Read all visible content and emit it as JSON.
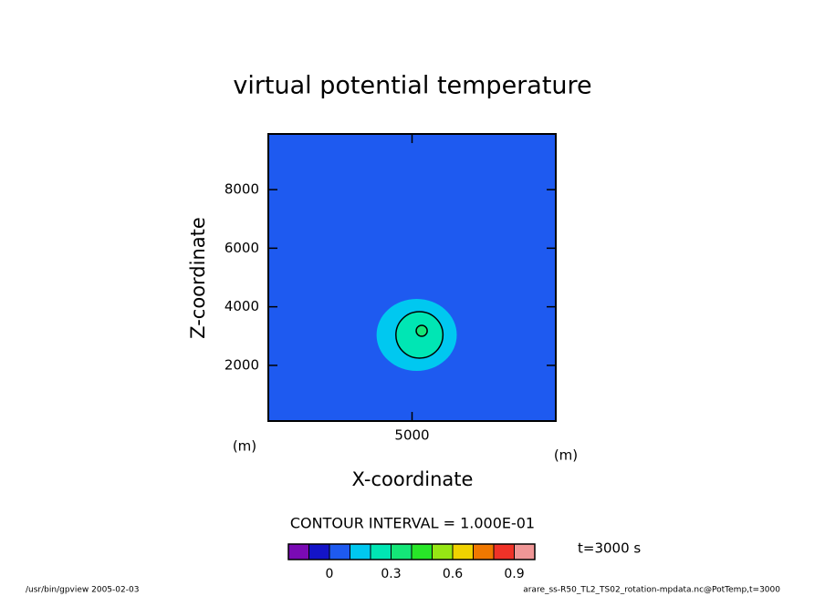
{
  "chart_data": {
    "type": "contour",
    "title": "virtual potential temperature",
    "xlabel": "X-coordinate",
    "ylabel": "Z-coordinate",
    "x_unit": "(m)",
    "y_unit": "(m)",
    "xlim": [
      50,
      9950
    ],
    "ylim": [
      100,
      9900
    ],
    "xticks": [
      5000
    ],
    "yticks": [
      2000,
      4000,
      6000,
      8000
    ],
    "contour_interval_label": "CONTOUR INTERVAL = 1.000E-01",
    "time_label": "t=3000 s",
    "colorbar": {
      "levels": [
        -0.2,
        -0.1,
        0,
        0.1,
        0.2,
        0.3,
        0.4,
        0.5,
        0.6,
        0.7,
        0.8,
        0.9,
        1.0
      ],
      "colors": [
        "#7a0ab4",
        "#1414c8",
        "#1e5af0",
        "#00c8f0",
        "#00e6b4",
        "#14e678",
        "#28e628",
        "#96e614",
        "#f0d200",
        "#f07800",
        "#f03228",
        "#f09696"
      ],
      "ticks": [
        0,
        0.3,
        0.6,
        0.9
      ]
    },
    "contours": [
      {
        "level": 0.1,
        "x": 5159,
        "y": 3040,
        "rx": 1381,
        "ry": 1229,
        "line": false
      },
      {
        "level": 0.2,
        "x": 5254,
        "y": 3040,
        "rx": 810,
        "ry": 793,
        "line": true
      },
      {
        "level": 0.3,
        "x": 5333,
        "y": 3180,
        "rx": 190,
        "ry": 187,
        "line": true
      }
    ],
    "footer_left": "/usr/bin/gpview  2005-02-03",
    "footer_right": "arare_ss-R50_TL2_TS02_rotation-mpdata.nc@PotTemp,t=3000"
  }
}
